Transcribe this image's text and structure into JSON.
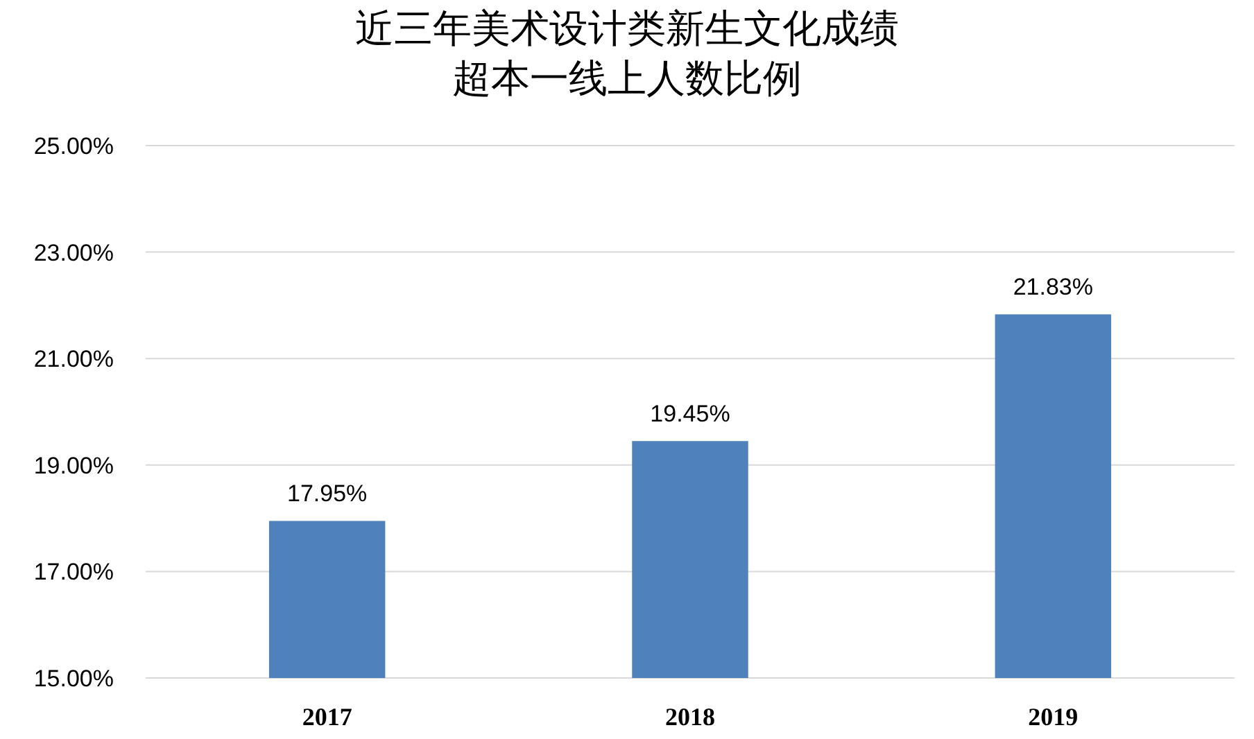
{
  "chart_data": {
    "type": "bar",
    "title": "近三年美术设计类新生文化成绩超本一线上人数比例",
    "categories": [
      "2017",
      "2018",
      "2019"
    ],
    "values": [
      17.95,
      19.45,
      21.83
    ],
    "color": "#4f81bd",
    "value_labels": [
      "17.95%",
      "19.45%",
      "21.83%"
    ],
    "ylim": [
      15,
      25
    ],
    "yticks": [
      {
        "value": 15,
        "label": "15.00%"
      },
      {
        "value": 17,
        "label": "17.00%"
      },
      {
        "value": 19,
        "label": "19.00%"
      },
      {
        "value": 21,
        "label": "21.00%"
      },
      {
        "value": 23,
        "label": "23.00%"
      },
      {
        "value": 25,
        "label": "25.00%"
      }
    ],
    "grid": "y"
  }
}
